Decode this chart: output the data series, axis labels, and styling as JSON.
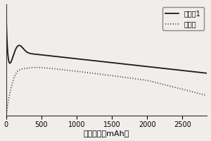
{
  "title": "",
  "xlabel": "电池容量（mAh）",
  "ylabel": "",
  "xlim": [
    0,
    2850
  ],
  "xticks": [
    0,
    500,
    1000,
    1500,
    2000,
    2500
  ],
  "legend": [
    "实施例1",
    "对比例"
  ],
  "background_color": "#f0eeeb",
  "line_color": "#1a1a1a",
  "dotted_color": "#1a1a1a"
}
